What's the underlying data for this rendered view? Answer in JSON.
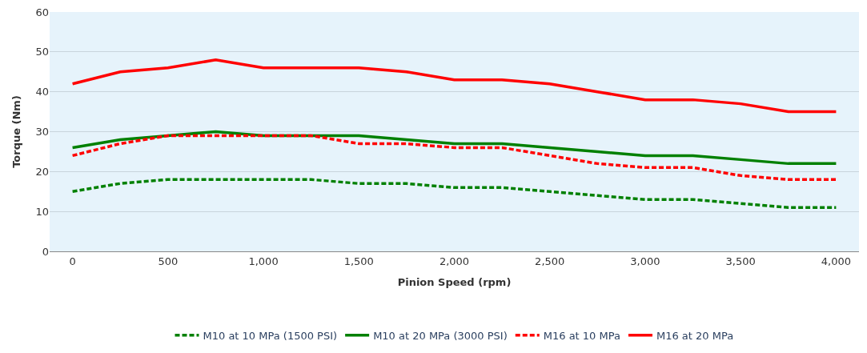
{
  "chart_data": {
    "type": "line",
    "xlabel": "Pinion Speed (rpm)",
    "ylabel": "Torque (Nm)",
    "x": [
      0,
      250,
      500,
      750,
      1000,
      1250,
      1500,
      1750,
      2000,
      2250,
      2500,
      2750,
      3000,
      3250,
      3500,
      3750,
      4000
    ],
    "xlim": [
      -120,
      4120
    ],
    "xticks": [
      0,
      500,
      {
        "value": 1000,
        "label": "1,000"
      },
      {
        "value": 1500,
        "label": "1,500"
      },
      {
        "value": 2000,
        "label": "2,000"
      },
      {
        "value": 2500,
        "label": "2,500"
      },
      {
        "value": 3000,
        "label": "3,000"
      },
      {
        "value": 3500,
        "label": "3,500"
      },
      {
        "value": 4000,
        "label": "4,000"
      }
    ],
    "ylim": [
      0,
      60
    ],
    "yticks": [
      0,
      10,
      20,
      30,
      40,
      50,
      60
    ],
    "grid": "y",
    "legend": "bottom",
    "marker": "none",
    "series": [
      {
        "name": "M10 at 10 MPa (1500 PSI)",
        "color": "#008000",
        "line_style": "dashed",
        "values": [
          15,
          17,
          18,
          18,
          18,
          18,
          17,
          17,
          16,
          16,
          15,
          14,
          13,
          13,
          12,
          11,
          11
        ]
      },
      {
        "name": "M10 at 20 MPa (3000 PSI)",
        "color": "#008000",
        "line_style": "solid",
        "values": [
          26,
          28,
          29,
          30,
          29,
          29,
          29,
          28,
          27,
          27,
          26,
          25,
          24,
          24,
          23,
          22,
          22
        ]
      },
      {
        "name": "M16 at 10 MPa",
        "color": "#ff0000",
        "line_style": "dashed",
        "values": [
          24,
          27,
          29,
          29,
          29,
          29,
          27,
          27,
          26,
          26,
          24,
          22,
          21,
          21,
          19,
          18,
          18
        ]
      },
      {
        "name": "M16 at 20 MPa",
        "color": "#ff0000",
        "line_style": "solid",
        "values": [
          42,
          45,
          46,
          48,
          46,
          46,
          46,
          45,
          43,
          43,
          42,
          40,
          38,
          38,
          37,
          35,
          35
        ]
      }
    ]
  }
}
